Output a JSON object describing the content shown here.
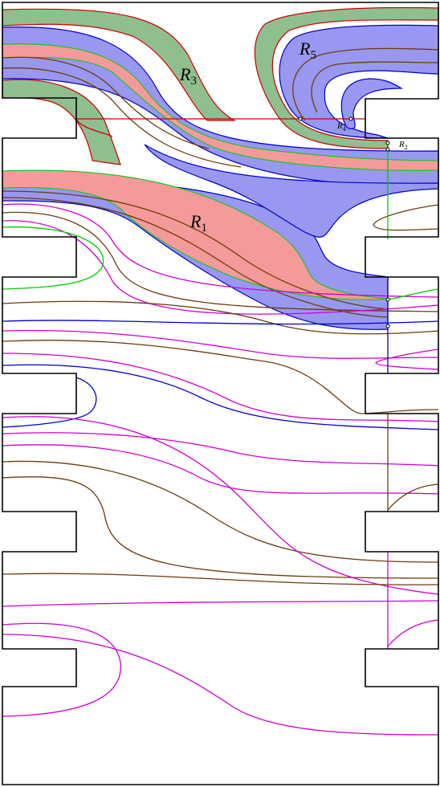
{
  "labels": [
    {
      "letter": "R",
      "index": "3"
    },
    {
      "letter": "R",
      "index": "5"
    },
    {
      "letter": "R",
      "index": "1"
    },
    {
      "letter": "R",
      "index": "4"
    },
    {
      "letter": "R",
      "index": "2"
    }
  ]
}
